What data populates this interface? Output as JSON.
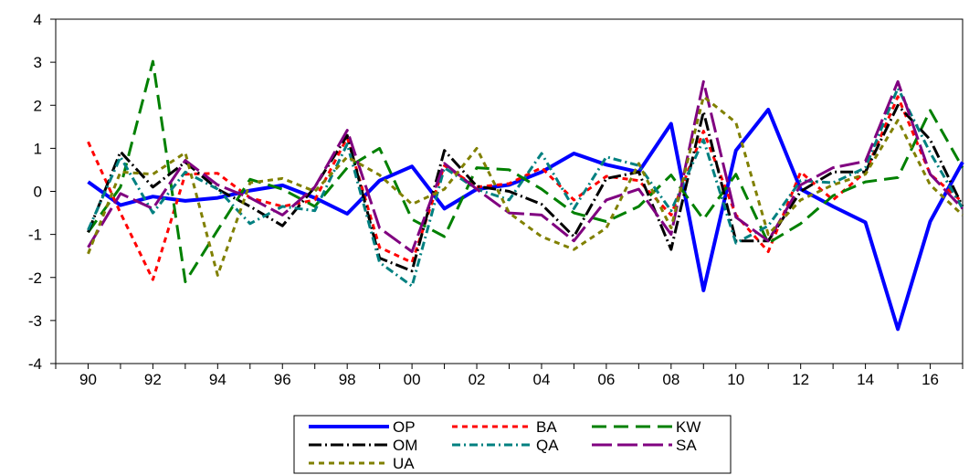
{
  "chart_data": {
    "type": "line",
    "title": "",
    "xlabel": "",
    "ylabel": "",
    "ylim": [
      -4,
      4
    ],
    "yticks": [
      "4",
      "3",
      "2",
      "1",
      "0",
      "-1",
      "-2",
      "-3",
      "-4"
    ],
    "xlim": [
      1989,
      2017
    ],
    "xtick_years": [
      1990,
      1992,
      1994,
      1996,
      1998,
      2000,
      2002,
      2004,
      2006,
      2008,
      2010,
      2012,
      2014,
      2016
    ],
    "xtick_labels": [
      "90",
      "92",
      "94",
      "96",
      "98",
      "00",
      "02",
      "04",
      "06",
      "08",
      "10",
      "12",
      "14",
      "16"
    ],
    "grid": false,
    "legend_position": "bottom-center",
    "x": [
      1990,
      1991,
      1992,
      1993,
      1994,
      1995,
      1996,
      1997,
      1998,
      1999,
      2000,
      2001,
      2002,
      2003,
      2004,
      2005,
      2006,
      2007,
      2008,
      2009,
      2010,
      2011,
      2012,
      2013,
      2014,
      2015,
      2016,
      2017
    ],
    "series": [
      {
        "name": "OP",
        "color": "#0000ff",
        "dash": "solid",
        "width": 4,
        "values": [
          0.22,
          -0.32,
          -0.12,
          -0.22,
          -0.15,
          0.02,
          0.14,
          -0.15,
          -0.52,
          0.25,
          0.58,
          -0.4,
          0.05,
          0.15,
          0.45,
          0.88,
          0.62,
          0.45,
          1.57,
          -2.3,
          0.95,
          1.9,
          0.05,
          -0.35,
          -0.72,
          -3.2,
          -0.7,
          0.68
        ]
      },
      {
        "name": "BA",
        "color": "#ff0000",
        "dash": "6,5",
        "width": 3,
        "values": [
          1.15,
          -0.5,
          -2.05,
          0.4,
          0.42,
          -0.15,
          -0.35,
          -0.2,
          1.25,
          -1.3,
          -1.65,
          0.6,
          0.1,
          0.18,
          0.55,
          -0.2,
          0.35,
          0.25,
          -0.55,
          1.4,
          -0.55,
          -1.4,
          0.45,
          -0.2,
          0.45,
          2.2,
          0.4,
          -0.25
        ]
      },
      {
        "name": "KW",
        "color": "#008000",
        "dash": "16,8",
        "width": 3,
        "values": [
          -0.95,
          0.1,
          3.02,
          -2.1,
          -0.9,
          0.28,
          0.05,
          -0.35,
          0.55,
          1.0,
          -0.65,
          -1.05,
          0.55,
          0.5,
          0.05,
          -0.5,
          -0.7,
          -0.35,
          0.38,
          -0.65,
          0.4,
          -1.2,
          -0.75,
          -0.1,
          0.22,
          0.32,
          1.88,
          0.55
        ]
      },
      {
        "name": "OM",
        "color": "#000000",
        "dash": "14,4,2,4",
        "width": 3,
        "values": [
          -0.95,
          0.92,
          0.1,
          0.68,
          0.05,
          -0.35,
          -0.8,
          0.1,
          1.3,
          -1.55,
          -1.85,
          0.95,
          0.12,
          0.0,
          -0.3,
          -1.05,
          0.3,
          0.45,
          -1.35,
          1.85,
          -1.15,
          -1.15,
          0.0,
          0.45,
          0.45,
          2.0,
          1.2,
          -0.35
        ]
      },
      {
        "name": "QA",
        "color": "#008080",
        "dash": "9,4,2,4",
        "width": 3,
        "values": [
          -0.9,
          0.8,
          -0.5,
          0.45,
          0.05,
          -0.75,
          -0.35,
          -0.45,
          1.1,
          -1.65,
          -2.2,
          0.55,
          0.05,
          -0.2,
          0.88,
          -0.4,
          0.8,
          0.6,
          -0.45,
          1.2,
          -1.2,
          -0.8,
          0.25,
          0.2,
          0.55,
          2.4,
          0.9,
          -0.4
        ]
      },
      {
        "name": "SA",
        "color": "#800080",
        "dash": "22,6",
        "width": 3,
        "values": [
          -1.3,
          -0.05,
          -0.4,
          0.72,
          0.15,
          -0.15,
          -0.55,
          0.1,
          1.42,
          -0.85,
          -1.4,
          0.65,
          0.05,
          -0.5,
          -0.55,
          -1.15,
          -0.2,
          0.05,
          -1.0,
          2.55,
          -0.6,
          -1.15,
          0.15,
          0.55,
          0.7,
          2.55,
          0.4,
          -0.4
        ]
      },
      {
        "name": "UA",
        "color": "#808000",
        "dash": "6,5",
        "width": 3,
        "values": [
          -1.45,
          0.45,
          0.4,
          0.9,
          -1.95,
          0.2,
          0.3,
          0.0,
          0.8,
          0.38,
          -0.3,
          0.05,
          1.0,
          -0.5,
          -1.05,
          -1.35,
          -0.85,
          0.65,
          -0.85,
          2.2,
          1.6,
          -1.0,
          -0.2,
          0.15,
          0.4,
          1.65,
          0.15,
          -0.55
        ]
      }
    ]
  }
}
